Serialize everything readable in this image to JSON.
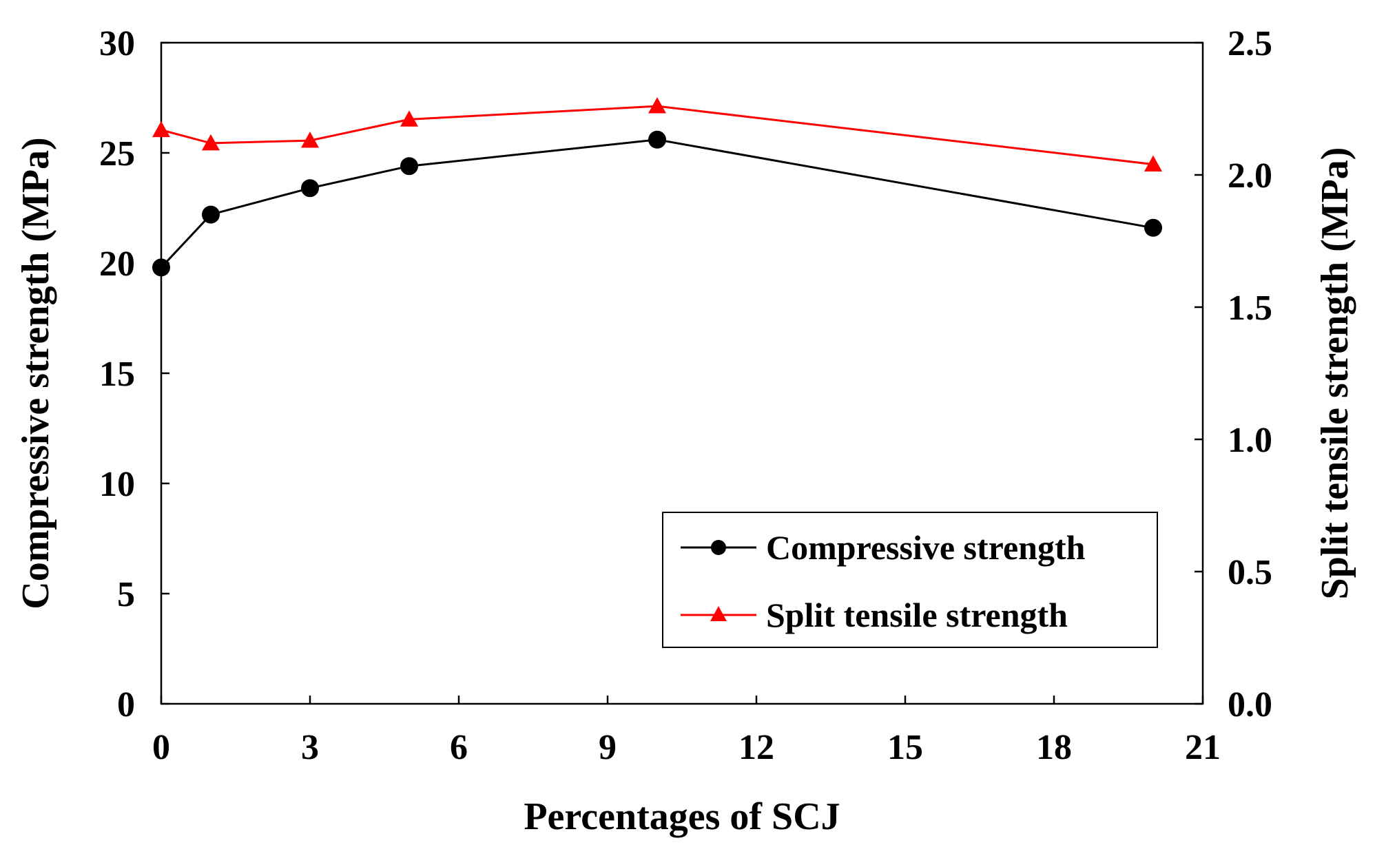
{
  "chart_data": {
    "type": "line",
    "xlabel": "Percentages of SCJ",
    "ylabel": "Compressive strength (MPa)",
    "y2label": "Split tensile strength (MPa)",
    "xlim": [
      0,
      21
    ],
    "ylim": [
      0,
      30
    ],
    "y2lim": [
      0.0,
      2.5
    ],
    "x_ticks": [
      "0",
      "3",
      "6",
      "9",
      "12",
      "15",
      "18",
      "21"
    ],
    "y_ticks": [
      "0",
      "5",
      "10",
      "15",
      "20",
      "25",
      "30"
    ],
    "y2_ticks": [
      "0.0",
      "0.5",
      "1.0",
      "1.5",
      "2.0",
      "2.5"
    ],
    "x": [
      0,
      1,
      3,
      5,
      10,
      20
    ],
    "series": [
      {
        "name": "Compressive strength",
        "axis": "left",
        "marker": "circle",
        "color": "#000000",
        "values": [
          19.8,
          22.2,
          23.4,
          24.4,
          25.6,
          21.6
        ]
      },
      {
        "name": "Split tensile strength",
        "axis": "right",
        "marker": "triangle",
        "color": "#ff0000",
        "values": [
          2.17,
          2.12,
          2.13,
          2.21,
          2.26,
          2.04
        ]
      }
    ],
    "legend_position": "lower-right",
    "grid": false
  }
}
